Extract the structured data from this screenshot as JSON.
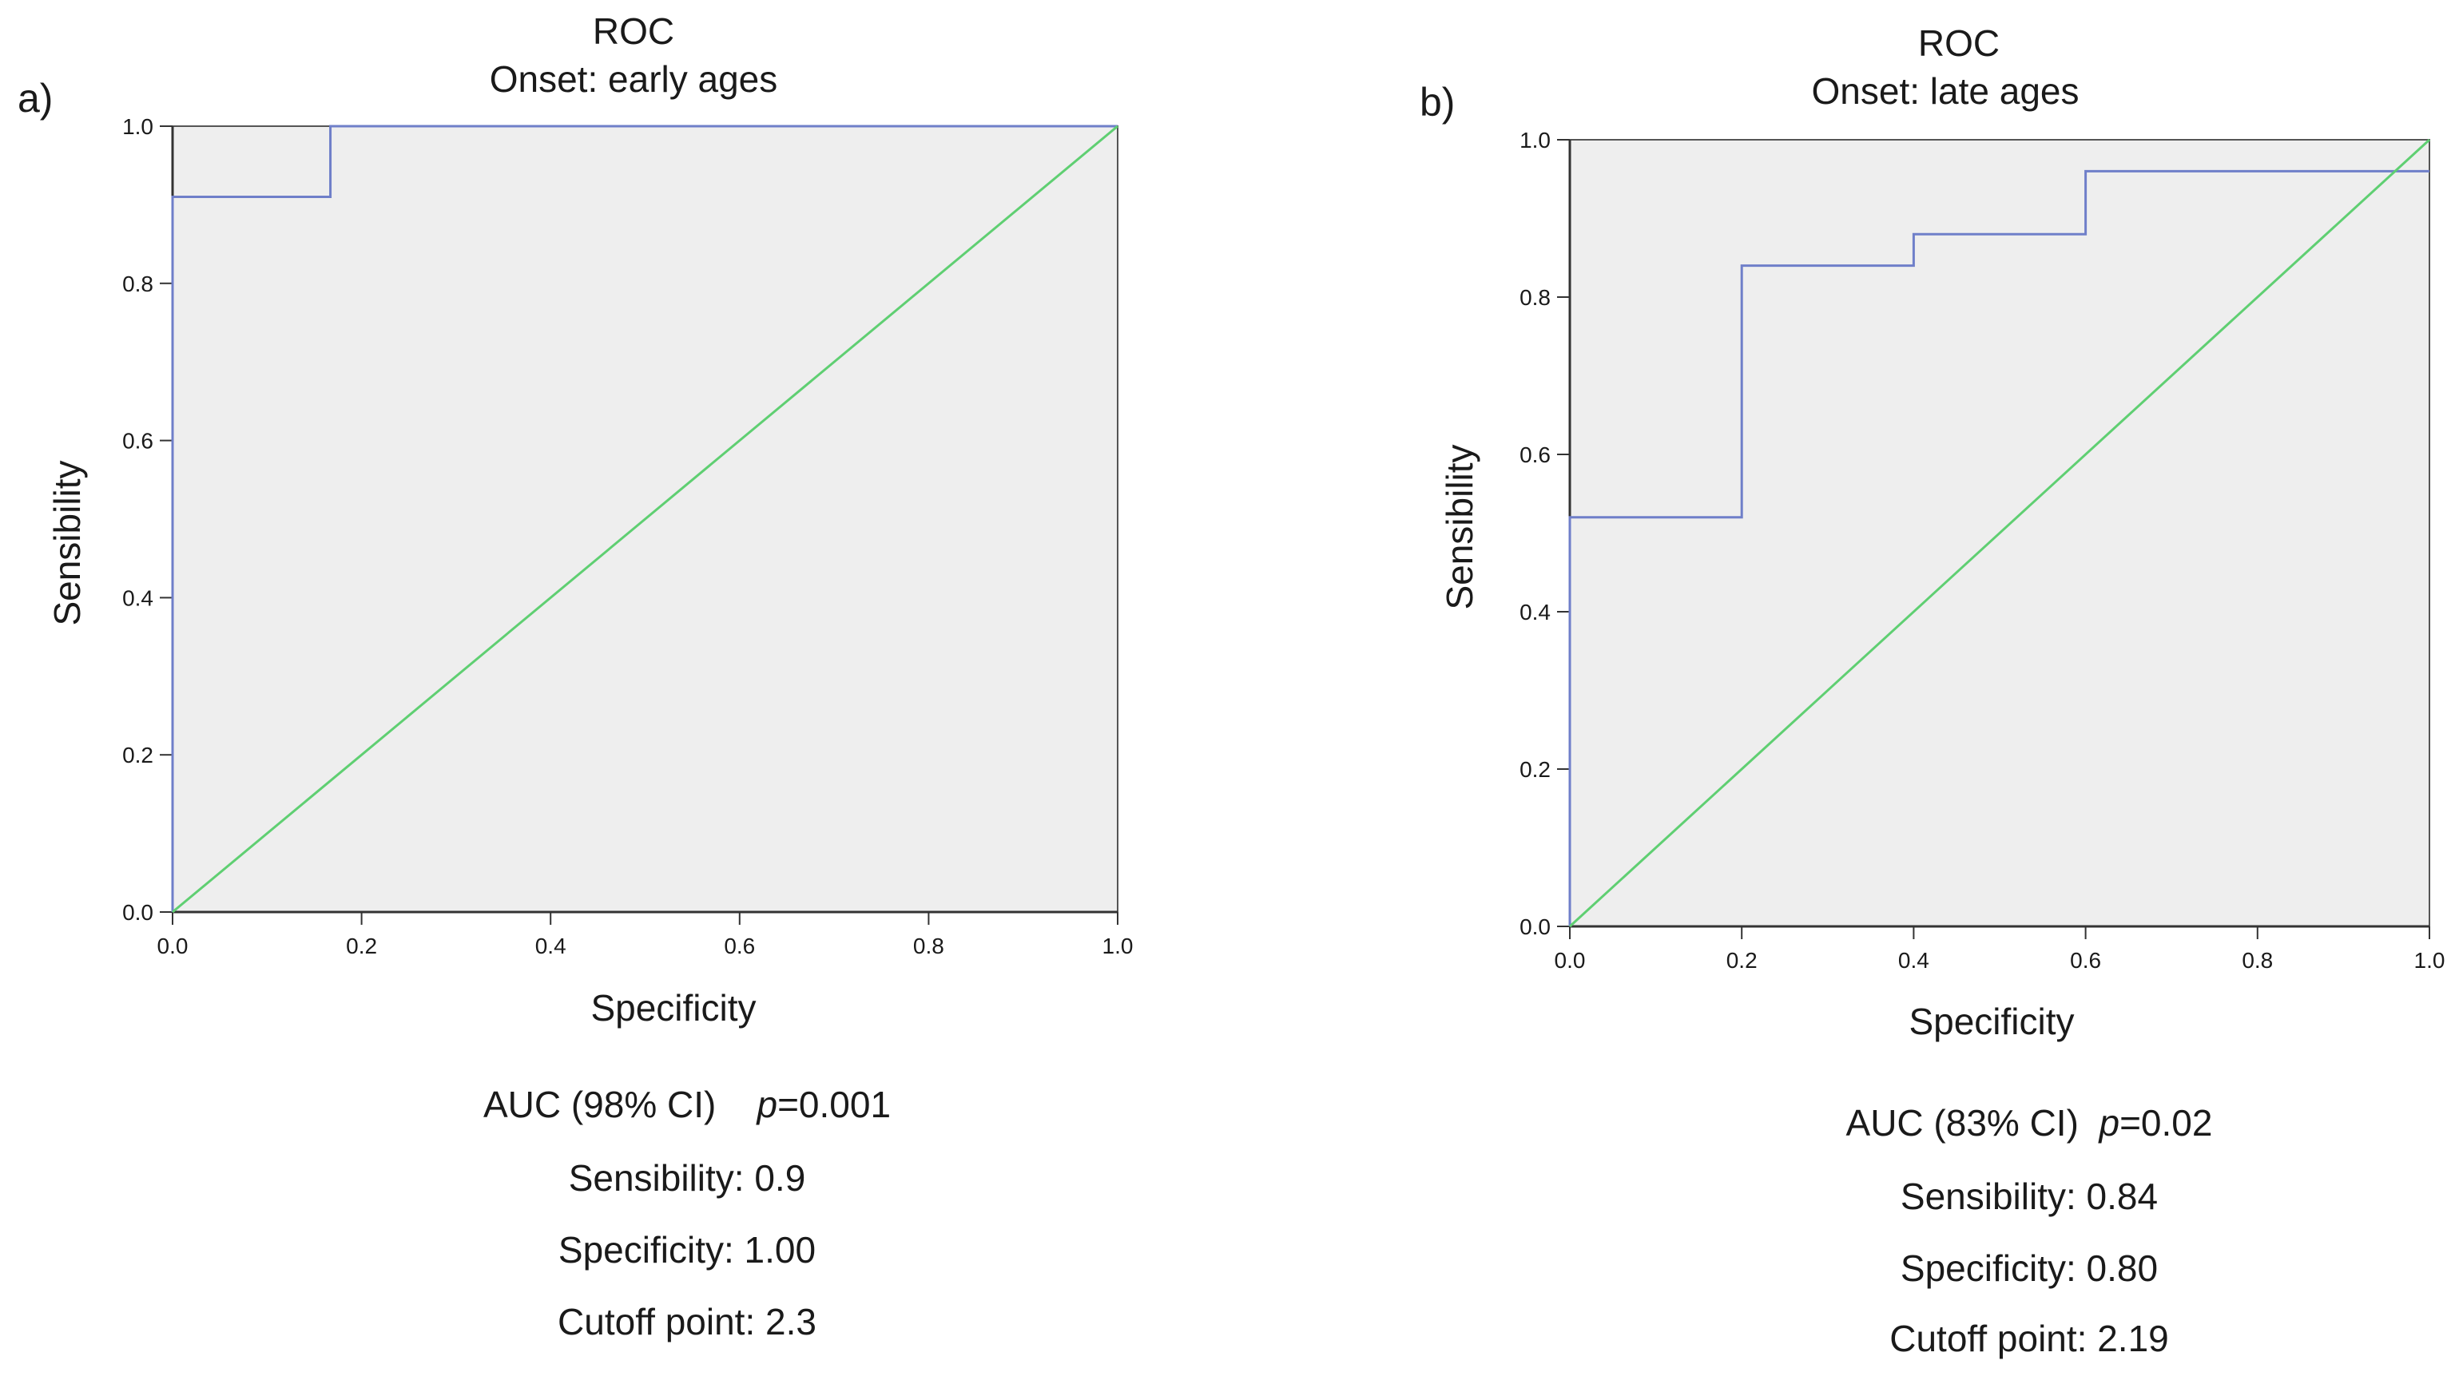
{
  "chart_data": [
    {
      "type": "line",
      "panel_label": "a)",
      "title": "ROC",
      "subtitle": "Onset: early ages",
      "xlabel": "Specificity",
      "ylabel": "Sensibility",
      "xlim": [
        0,
        1
      ],
      "ylim": [
        0,
        1
      ],
      "xticks": [
        "0.0",
        "0.2",
        "0.4",
        "0.6",
        "0.8",
        "1.0"
      ],
      "yticks": [
        "0.0",
        "0.2",
        "0.4",
        "0.6",
        "0.8",
        "1.0"
      ],
      "grid": false,
      "series": [
        {
          "name": "ROC curve",
          "color": "#6f7fc9",
          "x": [
            0,
            0,
            0.167,
            0.167,
            1.0
          ],
          "y": [
            0,
            0.91,
            0.91,
            1.0,
            1.0
          ]
        },
        {
          "name": "Reference line",
          "color": "#5fcf72",
          "x": [
            0,
            1
          ],
          "y": [
            0,
            1
          ]
        }
      ],
      "annotations": {
        "auc_label": "AUC (98% CI)",
        "p_symbol": "p",
        "p_value": "=0.001",
        "sensibility": "Sensibility: 0.9",
        "specificity": "Specificity: 1.00",
        "cutoff": "Cutoff point: 2.3"
      }
    },
    {
      "type": "line",
      "panel_label": "b)",
      "title": "ROC",
      "subtitle": "Onset: late ages",
      "xlabel": "Specificity",
      "ylabel": "Sensibility",
      "xlim": [
        0,
        1
      ],
      "ylim": [
        0,
        1
      ],
      "xticks": [
        "0.0",
        "0.2",
        "0.4",
        "0.6",
        "0.8",
        "1.0"
      ],
      "yticks": [
        "0.0",
        "0.2",
        "0.4",
        "0.6",
        "0.8",
        "1.0"
      ],
      "grid": false,
      "series": [
        {
          "name": "ROC curve",
          "color": "#6f7fc9",
          "x": [
            0,
            0,
            0.2,
            0.2,
            0.4,
            0.4,
            0.6,
            0.6,
            1.0
          ],
          "y": [
            0,
            0.52,
            0.52,
            0.84,
            0.84,
            0.88,
            0.88,
            0.96,
            0.96
          ]
        },
        {
          "name": "Reference line",
          "color": "#5fcf72",
          "x": [
            0,
            1
          ],
          "y": [
            0,
            1
          ]
        }
      ],
      "annotations": {
        "auc_label": "AUC (83% CI)",
        "p_symbol": "p",
        "p_value": "=0.02",
        "sensibility": "Sensibility: 0.84",
        "specificity": "Specificity: 0.80",
        "cutoff": "Cutoff point:  2.19"
      }
    }
  ],
  "colors": {
    "plot_background": "#eeeeee",
    "axis": "#333333",
    "frame": "#555555"
  }
}
